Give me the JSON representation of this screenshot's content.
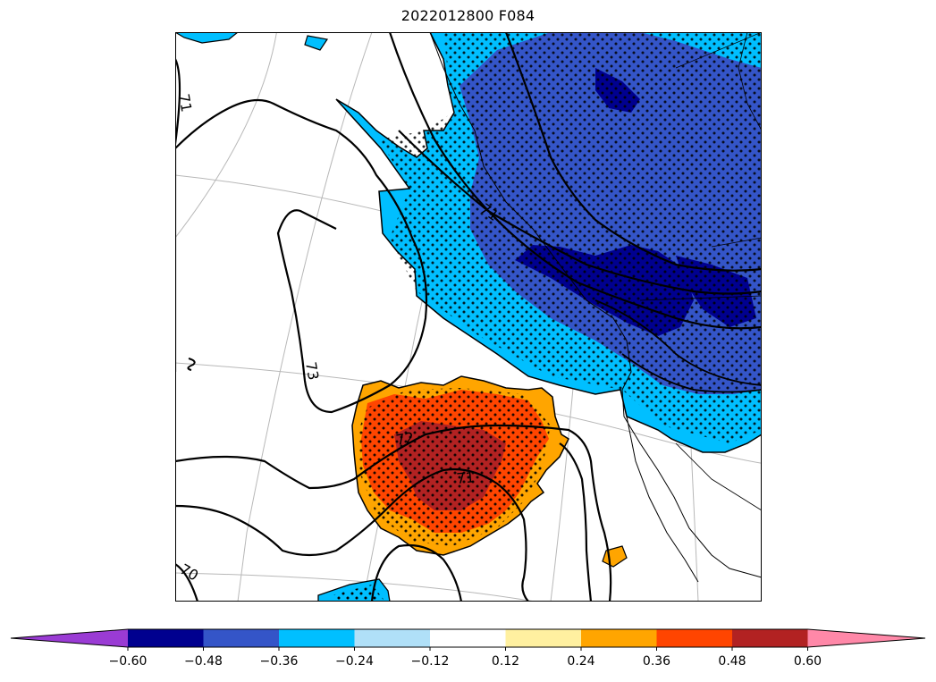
{
  "title": "2022012800 F084",
  "contour_labels": [
    "71",
    "73",
    "72",
    "71",
    "70",
    "71"
  ],
  "colorbar": {
    "ticks": [
      "−0.60",
      "−0.48",
      "−0.36",
      "−0.24",
      "−0.12",
      "0.12",
      "0.24",
      "0.36",
      "0.48",
      "0.60"
    ],
    "colors": [
      "#9a3bd4",
      "#00008f",
      "#3455c8",
      "#00bfff",
      "#b0e0f8",
      "#ffffff",
      "#fff0a0",
      "#ffa500",
      "#ff4500",
      "#b22222",
      "#ff88a8"
    ],
    "extend": "both"
  }
}
